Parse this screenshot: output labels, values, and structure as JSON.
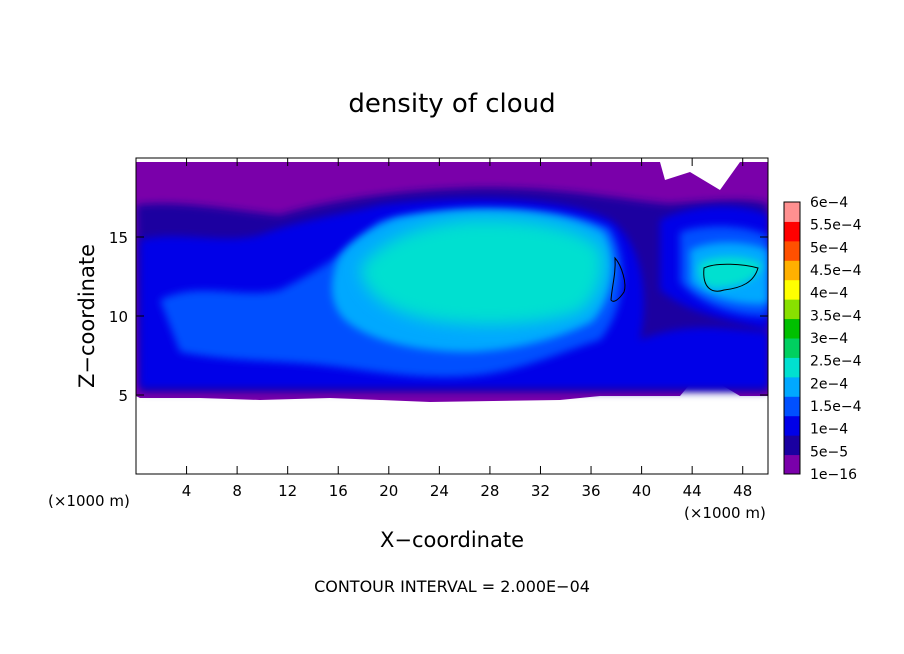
{
  "chart_data": {
    "type": "heatmap",
    "title": "density of cloud",
    "xlabel": "X−coordinate",
    "ylabel": "Z−coordinate",
    "x_unit_left": "(×1000 m)",
    "x_unit_right": "(×1000 m)",
    "xlim": [
      0,
      50
    ],
    "ylim": [
      0,
      20
    ],
    "x_ticks": [
      4,
      8,
      12,
      16,
      20,
      24,
      28,
      32,
      36,
      40,
      44,
      48
    ],
    "x_tick_labels": [
      "4",
      "8",
      "12",
      "16",
      "20",
      "24",
      "28",
      "32",
      "36",
      "40",
      "44",
      "48"
    ],
    "y_ticks": [
      5,
      10,
      15
    ],
    "y_tick_labels": [
      "5",
      "10",
      "15"
    ],
    "footer": "CONTOUR INTERVAL = 2.000E−04",
    "colorbar": {
      "labels": [
        "1e−16",
        "5e−5",
        "1e−4",
        "1.5e−4",
        "2e−4",
        "2.5e−4",
        "3e−4",
        "3.5e−4",
        "4e−4",
        "4.5e−4",
        "5e−4",
        "5.5e−4",
        "6e−4"
      ],
      "colors": [
        "#7a00aa",
        "#1a00a0",
        "#0000e8",
        "#0050ff",
        "#00a8ff",
        "#00e0d0",
        "#00d060",
        "#00c000",
        "#88e000",
        "#ffff00",
        "#ffb000",
        "#ff5000",
        "#ff0000",
        "#ff9090"
      ]
    },
    "field": {
      "cloud_base_z": 5,
      "cloud_top_z": 19,
      "core_center_x": 27,
      "core_center_z": 11,
      "core_level": "2e−4",
      "contours_level": "2e−4"
    }
  }
}
